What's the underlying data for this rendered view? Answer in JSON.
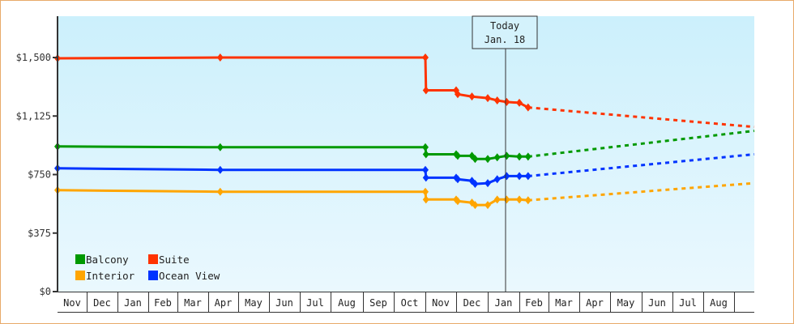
{
  "chart_data": {
    "type": "line",
    "title": "",
    "xlabel": "",
    "ylabel": "",
    "ylim": [
      0,
      1800
    ],
    "y_ticks": [
      {
        "value": 0,
        "label": "$0"
      },
      {
        "value": 375,
        "label": "$375"
      },
      {
        "value": 750,
        "label": "$750"
      },
      {
        "value": 1125,
        "label": "$1,125"
      },
      {
        "value": 1500,
        "label": "$1,500"
      }
    ],
    "x_months": [
      "Nov",
      "Dec",
      "Jan",
      "Feb",
      "Mar",
      "Apr",
      "May",
      "Jun",
      "Jul",
      "Aug",
      "Sep",
      "Oct",
      "Nov",
      "Dec",
      "Jan",
      "Feb",
      "Mar",
      "Apr",
      "May",
      "Jun",
      "Jul",
      "Aug"
    ],
    "today_marker": {
      "line1": "Today",
      "line2": "Jan. 18"
    },
    "grid": false,
    "legend_position": "bottom-left inside",
    "series": [
      {
        "name": "Balcony",
        "color": "#009900",
        "observed": [
          [
            0,
            930
          ],
          [
            5.4,
            925
          ],
          [
            12,
            925
          ],
          [
            12.02,
            880
          ],
          [
            13,
            880
          ],
          [
            13.05,
            870
          ],
          [
            13.5,
            870
          ],
          [
            13.6,
            850
          ],
          [
            14,
            850
          ],
          [
            14.3,
            860
          ],
          [
            14.6,
            870
          ],
          [
            15,
            865
          ],
          [
            15.3,
            865
          ]
        ],
        "projected": [
          [
            15.3,
            865
          ],
          [
            22.8,
            1030
          ]
        ]
      },
      {
        "name": "Suite",
        "color": "#ff3300",
        "observed": [
          [
            0,
            1495
          ],
          [
            5.4,
            1500
          ],
          [
            12,
            1500
          ],
          [
            12.02,
            1290
          ],
          [
            13,
            1290
          ],
          [
            13.05,
            1265
          ],
          [
            13.5,
            1250
          ],
          [
            14,
            1240
          ],
          [
            14.3,
            1225
          ],
          [
            14.6,
            1215
          ],
          [
            15,
            1210
          ],
          [
            15.3,
            1180
          ]
        ],
        "projected": [
          [
            15.3,
            1180
          ],
          [
            22.8,
            1055
          ]
        ]
      },
      {
        "name": "Interior",
        "color": "#ffa500",
        "observed": [
          [
            0,
            650
          ],
          [
            5.4,
            640
          ],
          [
            12,
            640
          ],
          [
            12.02,
            590
          ],
          [
            13,
            590
          ],
          [
            13.05,
            580
          ],
          [
            13.5,
            570
          ],
          [
            13.6,
            555
          ],
          [
            14,
            555
          ],
          [
            14.3,
            590
          ],
          [
            14.6,
            590
          ],
          [
            15,
            590
          ],
          [
            15.3,
            585
          ]
        ],
        "projected": [
          [
            15.3,
            585
          ],
          [
            22.8,
            695
          ]
        ]
      },
      {
        "name": "Ocean View",
        "color": "#0033ff",
        "observed": [
          [
            0,
            790
          ],
          [
            5.4,
            780
          ],
          [
            12,
            780
          ],
          [
            12.02,
            730
          ],
          [
            13,
            730
          ],
          [
            13.05,
            720
          ],
          [
            13.5,
            710
          ],
          [
            13.6,
            690
          ],
          [
            14,
            695
          ],
          [
            14.3,
            720
          ],
          [
            14.6,
            740
          ],
          [
            15,
            740
          ],
          [
            15.3,
            740
          ]
        ],
        "projected": [
          [
            15.3,
            740
          ],
          [
            22.8,
            880
          ]
        ]
      }
    ]
  },
  "legend": {
    "items": [
      {
        "label": "Balcony",
        "color": "#009900"
      },
      {
        "label": "Suite",
        "color": "#ff3300"
      },
      {
        "label": "Interior",
        "color": "#ffa500"
      },
      {
        "label": "Ocean View",
        "color": "#0033ff"
      }
    ]
  }
}
